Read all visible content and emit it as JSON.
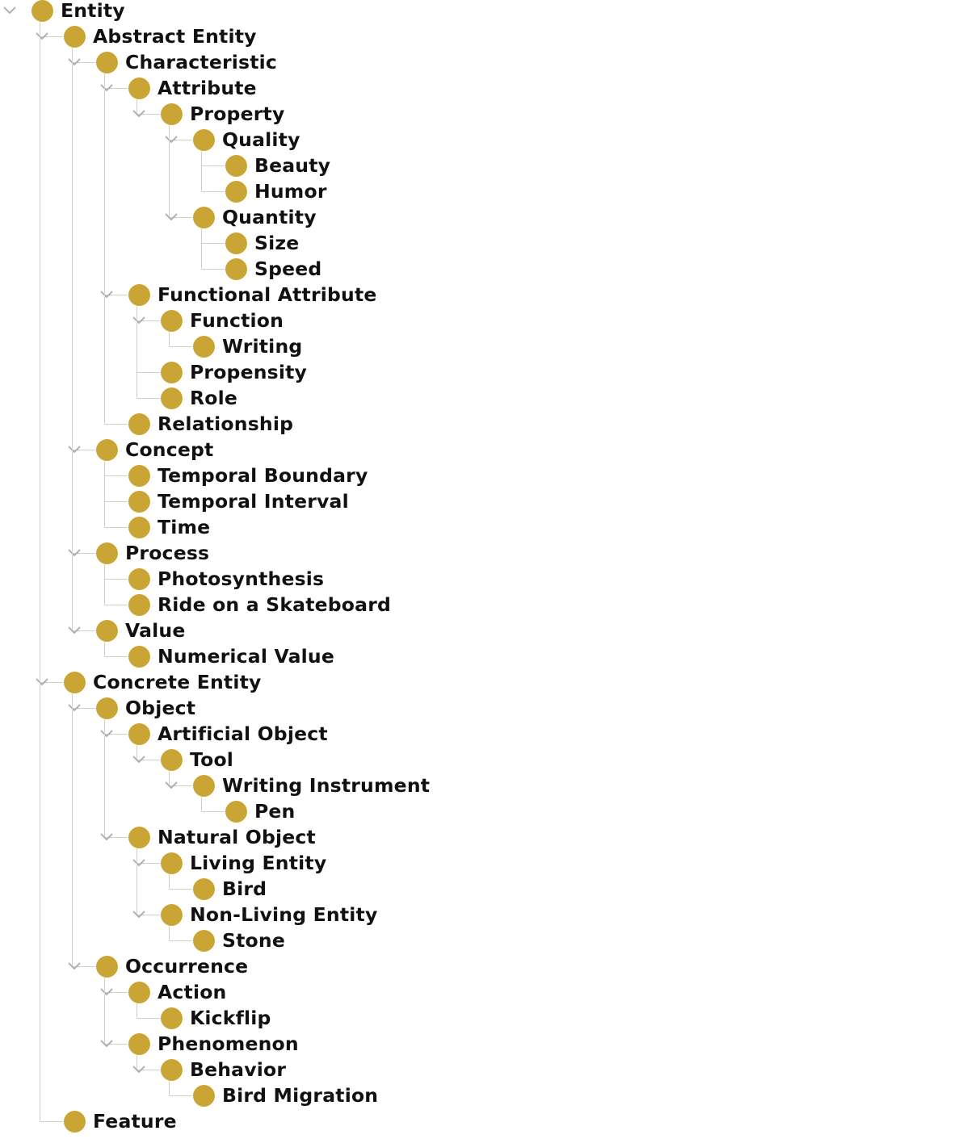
{
  "colors": {
    "node": "#c8a535",
    "line": "#cfcfcf",
    "toggle": "#a8a8a8",
    "text": "#111111"
  },
  "toggle_icon": "chevron-down-icon",
  "node_icon": "class-circle-icon",
  "tree": [
    {
      "label": "Entity",
      "children": [
        {
          "label": "Abstract Entity",
          "children": [
            {
              "label": "Characteristic",
              "children": [
                {
                  "label": "Attribute",
                  "children": [
                    {
                      "label": "Property",
                      "children": [
                        {
                          "label": "Quality",
                          "children": [
                            {
                              "label": "Beauty"
                            },
                            {
                              "label": "Humor"
                            }
                          ]
                        },
                        {
                          "label": "Quantity",
                          "children": [
                            {
                              "label": "Size"
                            },
                            {
                              "label": "Speed"
                            }
                          ]
                        }
                      ]
                    }
                  ]
                },
                {
                  "label": "Functional Attribute",
                  "children": [
                    {
                      "label": "Function",
                      "children": [
                        {
                          "label": "Writing"
                        }
                      ]
                    },
                    {
                      "label": "Propensity"
                    },
                    {
                      "label": "Role"
                    }
                  ]
                },
                {
                  "label": "Relationship"
                }
              ]
            },
            {
              "label": "Concept",
              "children": [
                {
                  "label": "Temporal Boundary"
                },
                {
                  "label": "Temporal Interval"
                },
                {
                  "label": "Time"
                }
              ]
            },
            {
              "label": "Process",
              "children": [
                {
                  "label": "Photosynthesis"
                },
                {
                  "label": "Ride on a Skateboard"
                }
              ]
            },
            {
              "label": "Value",
              "children": [
                {
                  "label": "Numerical Value"
                }
              ]
            }
          ]
        },
        {
          "label": "Concrete Entity",
          "children": [
            {
              "label": "Object",
              "children": [
                {
                  "label": "Artificial Object",
                  "children": [
                    {
                      "label": "Tool",
                      "children": [
                        {
                          "label": "Writing Instrument",
                          "children": [
                            {
                              "label": "Pen"
                            }
                          ]
                        }
                      ]
                    }
                  ]
                },
                {
                  "label": "Natural Object",
                  "children": [
                    {
                      "label": "Living Entity",
                      "children": [
                        {
                          "label": "Bird"
                        }
                      ]
                    },
                    {
                      "label": "Non-Living Entity",
                      "children": [
                        {
                          "label": "Stone"
                        }
                      ]
                    }
                  ]
                }
              ]
            },
            {
              "label": "Occurrence",
              "children": [
                {
                  "label": "Action",
                  "children": [
                    {
                      "label": "Kickflip"
                    }
                  ]
                },
                {
                  "label": "Phenomenon",
                  "children": [
                    {
                      "label": "Behavior",
                      "children": [
                        {
                          "label": "Bird Migration"
                        }
                      ]
                    }
                  ]
                }
              ]
            }
          ]
        },
        {
          "label": "Feature"
        }
      ]
    }
  ]
}
